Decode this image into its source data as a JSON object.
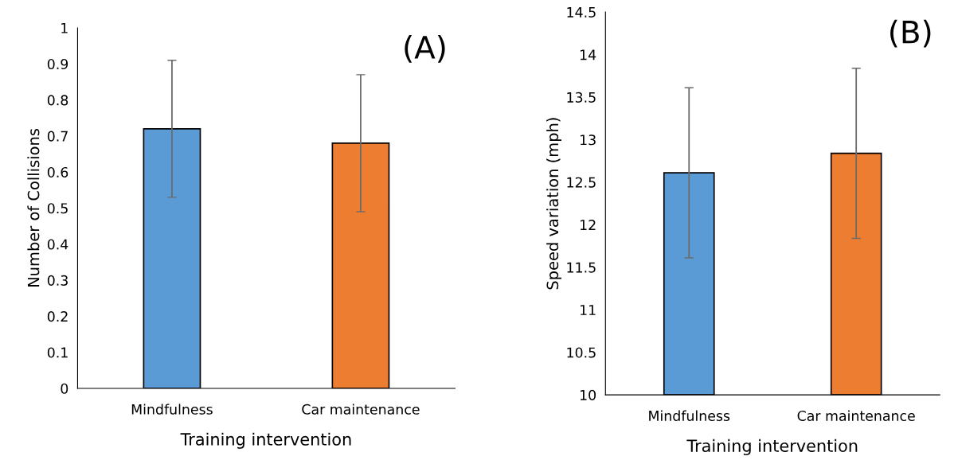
{
  "chart_data": [
    {
      "type": "bar",
      "xlabel": "Training intervention",
      "ylabel": "Number of Collisions",
      "categories": [
        "Mindfulness",
        "Car maintenance"
      ],
      "values": [
        0.72,
        0.68
      ],
      "colors": [
        "#5b9bd5",
        "#ed7d31"
      ],
      "errors": [
        0.19,
        0.19
      ],
      "ylim": [
        0,
        1
      ],
      "yticks": [
        0,
        0.1,
        0.2,
        0.3,
        0.4,
        0.5,
        0.6,
        0.7,
        0.8,
        0.9,
        1
      ],
      "grid": false,
      "annotations": [
        "(A)"
      ]
    },
    {
      "type": "bar",
      "xlabel": "Training intervention",
      "ylabel": "Speed variation (mph)",
      "categories": [
        "Mindfulness",
        "Car maintenance"
      ],
      "values": [
        12.61,
        12.84
      ],
      "colors": [
        "#5b9bd5",
        "#ed7d31"
      ],
      "errors": [
        1.0,
        1.0
      ],
      "ylim": [
        10,
        14.5
      ],
      "yticks": [
        10,
        10.5,
        11,
        11.5,
        12,
        12.5,
        13,
        13.5,
        14,
        14.5
      ],
      "grid": false,
      "annotations": [
        "(B)"
      ]
    }
  ]
}
